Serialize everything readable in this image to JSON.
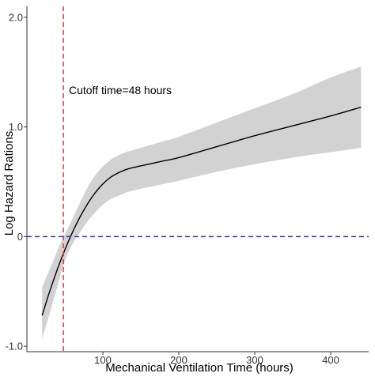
{
  "chart_data": {
    "type": "line",
    "xlabel": "Mechanical Ventilation Time (hours)",
    "ylabel": "Log Hazard Rations",
    "xlim": [
      0,
      450
    ],
    "ylim": [
      -1.05,
      2.1
    ],
    "x_ticks": [
      100,
      200,
      300,
      400
    ],
    "x_tick_labels": [
      "100",
      "200",
      "300",
      "400"
    ],
    "y_ticks": [
      -1.0,
      0,
      1.0,
      2.0
    ],
    "y_tick_labels": [
      "-1.0",
      "0",
      "1.0",
      "2.0"
    ],
    "grid": false,
    "series": [
      {
        "x": [
          20,
          30,
          40,
          50,
          60,
          70,
          80,
          90,
          100,
          110,
          120,
          130,
          140,
          160,
          180,
          200,
          250,
          300,
          350,
          400,
          440
        ],
        "y": [
          -0.72,
          -0.5,
          -0.3,
          -0.12,
          0.04,
          0.18,
          0.3,
          0.4,
          0.48,
          0.54,
          0.58,
          0.61,
          0.63,
          0.66,
          0.69,
          0.72,
          0.82,
          0.92,
          1.01,
          1.1,
          1.18
        ],
        "lower": [
          -0.93,
          -0.7,
          -0.46,
          -0.22,
          -0.07,
          0.04,
          0.14,
          0.22,
          0.29,
          0.34,
          0.37,
          0.4,
          0.42,
          0.45,
          0.48,
          0.51,
          0.59,
          0.66,
          0.72,
          0.77,
          0.81
        ],
        "upper": [
          -0.46,
          -0.3,
          -0.13,
          0.02,
          0.16,
          0.31,
          0.45,
          0.56,
          0.64,
          0.7,
          0.74,
          0.77,
          0.79,
          0.83,
          0.87,
          0.91,
          1.04,
          1.17,
          1.3,
          1.45,
          1.55
        ]
      }
    ],
    "reference_lines": [
      {
        "orientation": "vertical",
        "value": 48,
        "color": "#e8303a",
        "style": "dashed"
      },
      {
        "orientation": "horizontal",
        "value": 0,
        "color": "#2a2ad8",
        "style": "dashed"
      }
    ],
    "annotations": [
      {
        "text": "Cutoff time=48 hours",
        "x": 51,
        "y": 1.3
      }
    ],
    "colors": {
      "line": "#000000",
      "band": "#d2d2d2",
      "axis": "#333333"
    }
  }
}
